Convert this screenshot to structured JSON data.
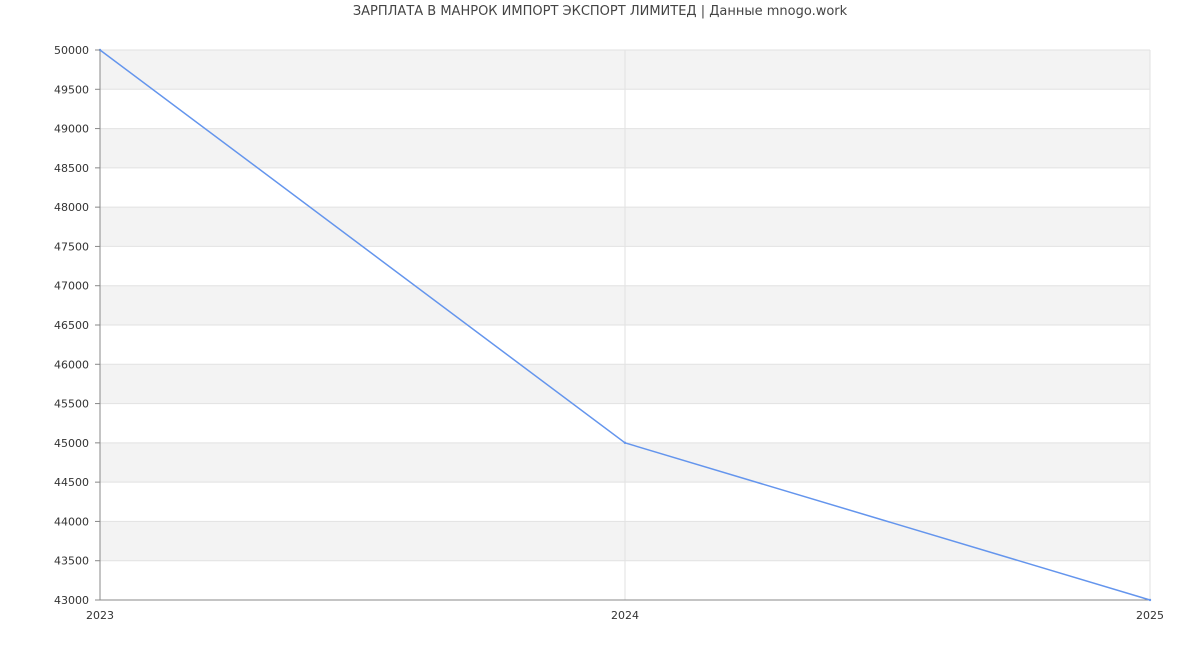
{
  "chart_data": {
    "type": "line",
    "title": "ЗАРПЛАТА В МАНРОК ИМПОРТ ЭКСПОРТ ЛИМИТЕД | Данные mnogo.work",
    "xlabel": "",
    "ylabel": "",
    "x": [
      "2023",
      "2024",
      "2025"
    ],
    "series": [
      {
        "values": [
          50000,
          45000,
          43000
        ]
      }
    ],
    "xticks": [
      "2023",
      "2024",
      "2025"
    ],
    "yticks": [
      43000,
      43500,
      44000,
      44500,
      45000,
      45500,
      46000,
      46500,
      47000,
      47500,
      48000,
      48500,
      49000,
      49500,
      50000
    ],
    "ylim": [
      43000,
      50000
    ],
    "grid": true,
    "legend": "none",
    "colors": {
      "line": "#6495ed",
      "band": "#f3f3f3",
      "grid": "#e2e2e2",
      "axis": "#888888"
    }
  }
}
